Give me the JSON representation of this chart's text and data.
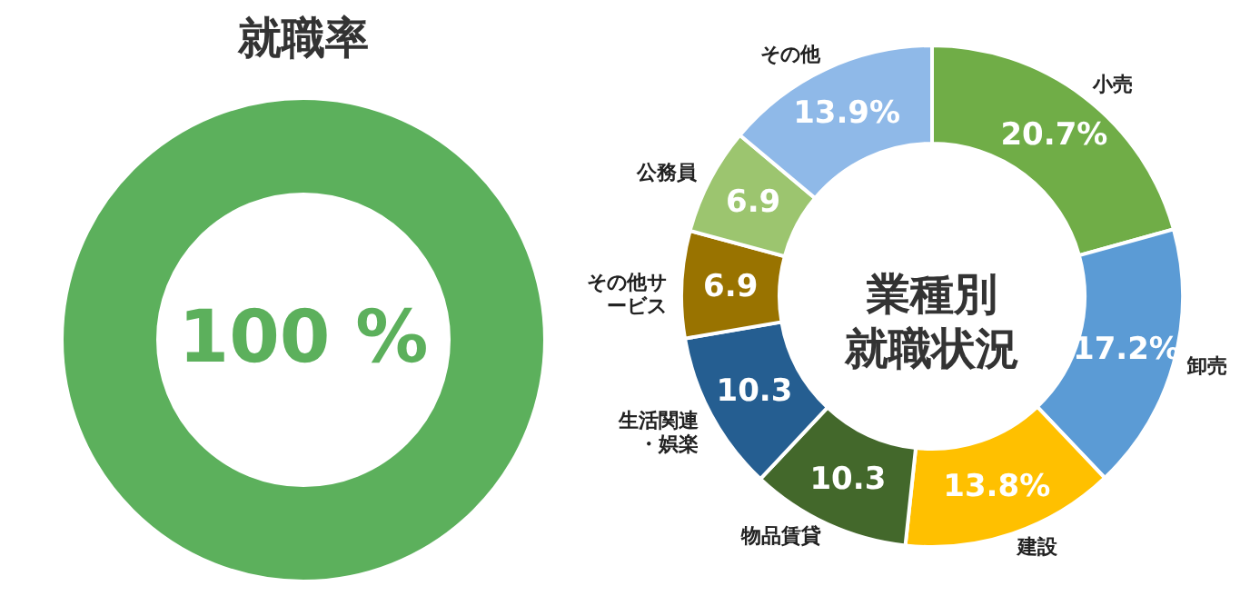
{
  "chart_data": [
    {
      "type": "donut",
      "title": "就職率",
      "categories": [
        null
      ],
      "values": [
        100
      ],
      "colors": [
        "#5cb05c"
      ],
      "annotations": [
        "100 %"
      ]
    },
    {
      "type": "donut",
      "title": "業種別就職状況",
      "categories": [
        "小売",
        "卸売",
        "建設",
        "物品賃貸",
        "生活関連・娯楽",
        "その他サービス",
        "公務員",
        "その他"
      ],
      "values": [
        20.7,
        17.2,
        13.8,
        10.3,
        10.3,
        6.9,
        6.9,
        13.9
      ],
      "colors": [
        "#70ad47",
        "#5b9bd5",
        "#ffc000",
        "#43682b",
        "#255e91",
        "#997300",
        "#9cc56f",
        "#8fb9e8"
      ],
      "value_labels": [
        "20.7%",
        "17.2%",
        "13.8%",
        "10.3",
        "10.3",
        "6.9",
        "6.9",
        "13.9%"
      ]
    }
  ]
}
